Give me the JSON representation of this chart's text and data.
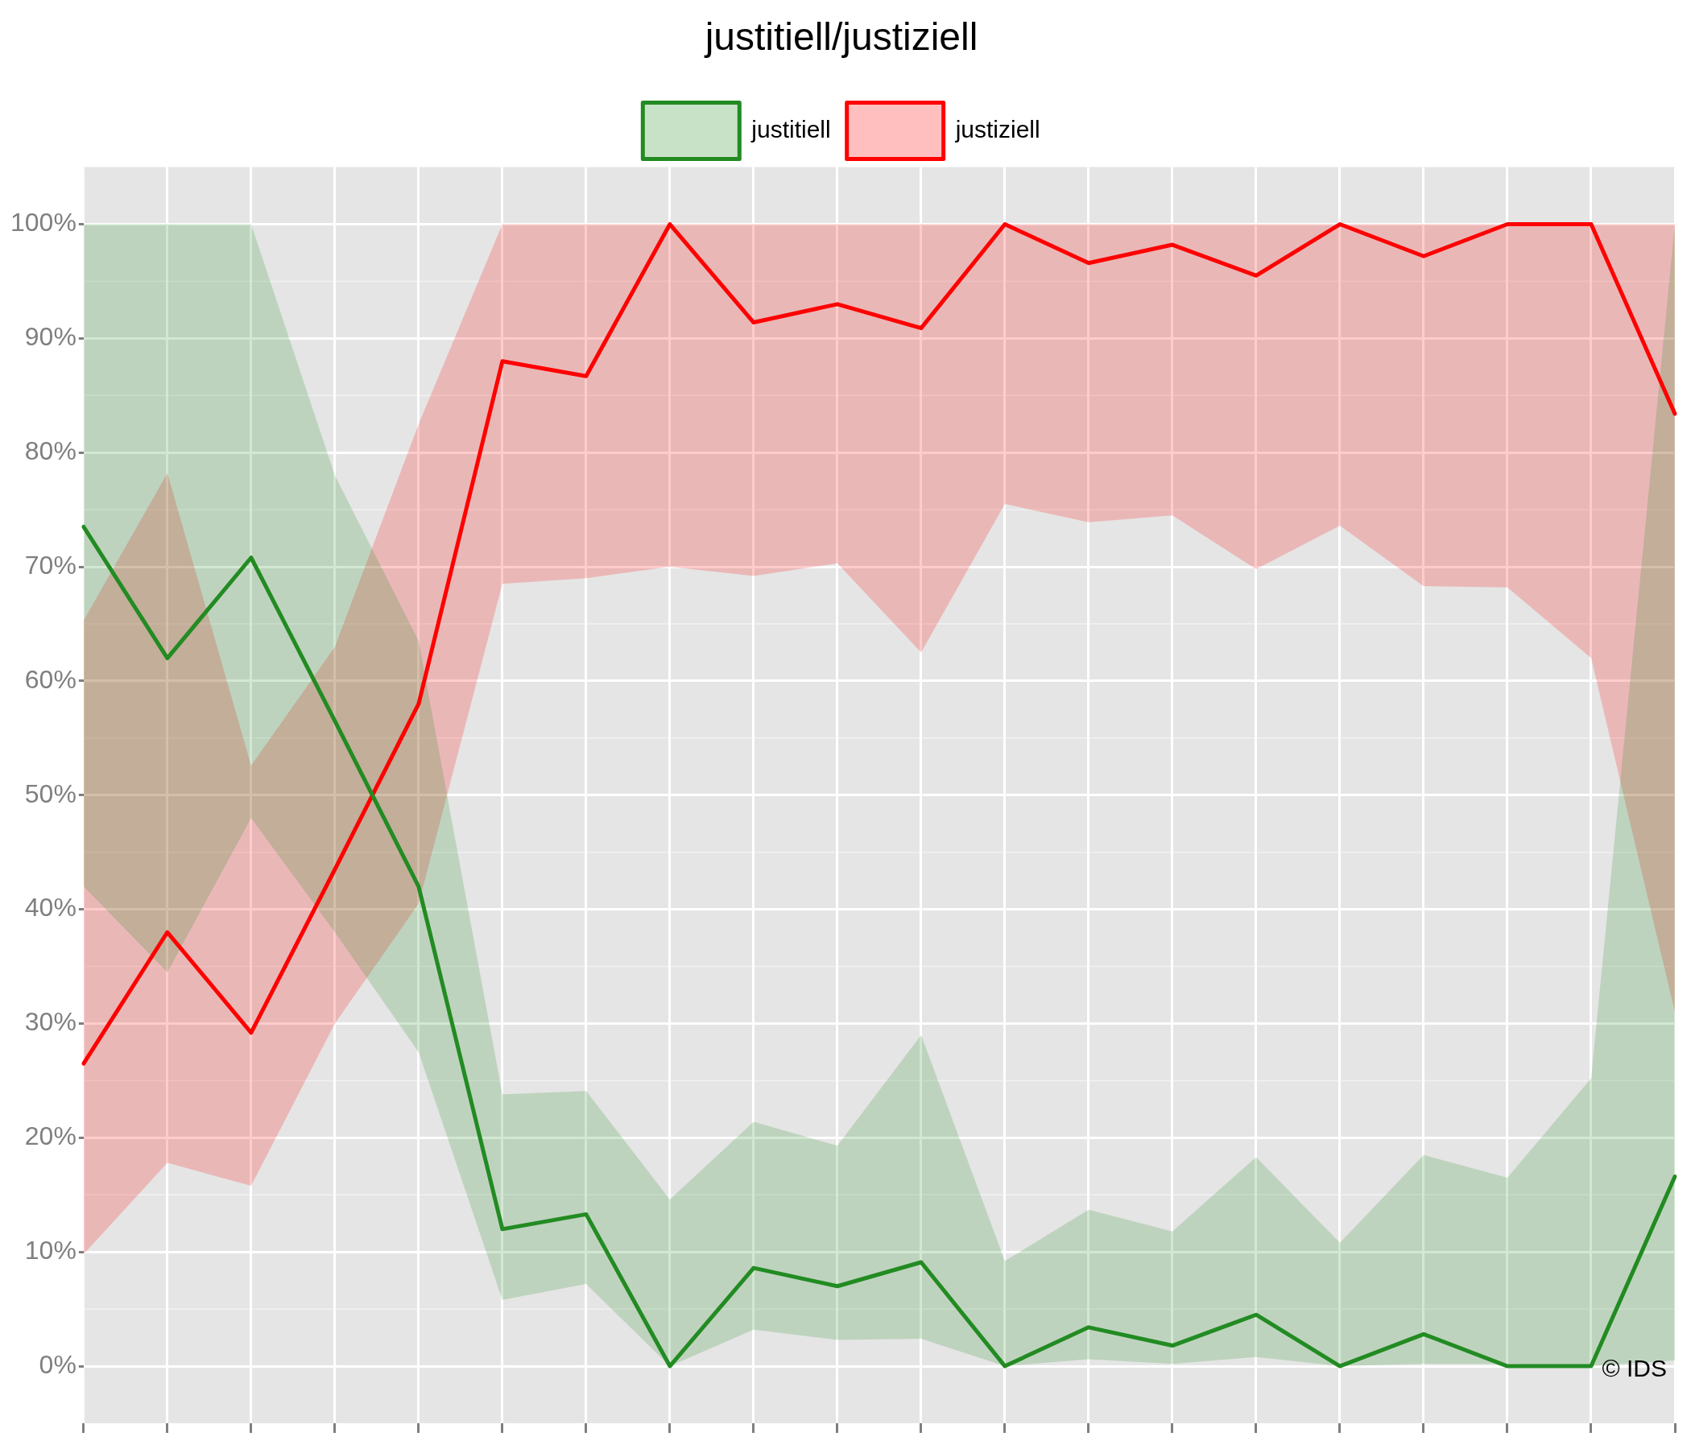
{
  "chart_data": {
    "type": "line",
    "title": "justitiell/justiziell",
    "categories": [
      null,
      null,
      null,
      null,
      null,
      null,
      null,
      null,
      null,
      null,
      null,
      null,
      null,
      null,
      null,
      null,
      null,
      null,
      null,
      null
    ],
    "series": [
      {
        "name": "justitiell",
        "color": "#228b22",
        "values": [
          73.5,
          62,
          70.8,
          56.5,
          42,
          12,
          13.3,
          0,
          8.6,
          7,
          9.1,
          0,
          3.4,
          1.8,
          4.5,
          0,
          2.8,
          0,
          0,
          16.6
        ],
        "lower": [
          42,
          34.5,
          48,
          38,
          27.5,
          5.8,
          7.2,
          0,
          3.2,
          2.3,
          2.4,
          0,
          0.6,
          0.2,
          0.8,
          0,
          0.2,
          0.2,
          0,
          0.5
        ],
        "upper": [
          100,
          100,
          100,
          78,
          63.5,
          23.8,
          24.1,
          14.6,
          21.4,
          19.3,
          29,
          9.2,
          13.7,
          11.8,
          18.3,
          10.8,
          18.5,
          16.5,
          25.2,
          100
        ]
      },
      {
        "name": "justiziell",
        "color": "#ff0000",
        "values": [
          26.5,
          38,
          29.2,
          43.5,
          58,
          88,
          86.7,
          100,
          91.4,
          93,
          90.9,
          100,
          96.6,
          98.2,
          95.5,
          100,
          97.2,
          100,
          100,
          83.4
        ],
        "lower": [
          9.8,
          17.8,
          15.8,
          30,
          40.5,
          68.5,
          69,
          70,
          69.2,
          70.3,
          62.5,
          75.5,
          73.9,
          74.5,
          69.8,
          73.6,
          68.3,
          68.2,
          62,
          31
        ],
        "upper": [
          65.3,
          78.2,
          52.6,
          63,
          82.5,
          100,
          100,
          100,
          100,
          100,
          100,
          100,
          100,
          100,
          100,
          100,
          100,
          100,
          100,
          100
        ]
      }
    ],
    "ylim": [
      -5,
      105
    ],
    "yticks": [
      {
        "value": 0,
        "label": "0%"
      },
      {
        "value": 10,
        "label": "10%"
      },
      {
        "value": 20,
        "label": "20%"
      },
      {
        "value": 30,
        "label": "30%"
      },
      {
        "value": 40,
        "label": "40%"
      },
      {
        "value": 50,
        "label": "50%"
      },
      {
        "value": 60,
        "label": "60%"
      },
      {
        "value": 70,
        "label": "70%"
      },
      {
        "value": 80,
        "label": "80%"
      },
      {
        "value": 90,
        "label": "90%"
      },
      {
        "value": 100,
        "label": "100%"
      }
    ],
    "grid": true,
    "legend": "top",
    "tick_labels": "y",
    "marker": "none",
    "line_style": "solid",
    "annotations": [
      "© IDS"
    ]
  }
}
